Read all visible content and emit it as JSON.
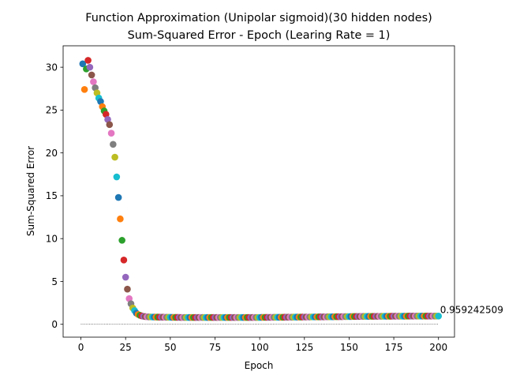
{
  "chart_data": {
    "type": "scatter",
    "title_line1": "Function Approximation (Unipolar sigmoid)(30 hidden nodes)",
    "title_line2": "Sum-Squared Error - Epoch (Learing Rate = 1)",
    "xlabel": "Epoch",
    "ylabel": "Sum-Squared Error",
    "xlim": [
      -9.95,
      208.95
    ],
    "ylim": [
      -1.5,
      32.5
    ],
    "xticks": [
      0,
      25,
      50,
      75,
      100,
      125,
      150,
      175,
      200
    ],
    "yticks": [
      0,
      5,
      10,
      15,
      20,
      25,
      30
    ],
    "grid": false,
    "legend": "none",
    "reference_line": {
      "y": 0,
      "x_start": 0,
      "x_end": 200,
      "style": "dotted"
    },
    "annotation": {
      "text": "0.959242509",
      "x": 200,
      "y": 0.959242509
    },
    "color_cycle": [
      "#1f77b4",
      "#ff7f0e",
      "#2ca02c",
      "#d62728",
      "#9467bd",
      "#8c564b",
      "#e377c2",
      "#7f7f7f",
      "#bcbd22",
      "#17becf"
    ],
    "x_start": 1,
    "y": [
      30.4,
      27.4,
      29.8,
      30.8,
      30.0,
      29.1,
      28.3,
      27.6,
      27.0,
      26.4,
      26.0,
      25.4,
      24.9,
      24.5,
      23.9,
      23.3,
      22.3,
      21.0,
      19.5,
      17.2,
      14.8,
      12.3,
      9.8,
      7.5,
      5.5,
      4.1,
      3.0,
      2.4,
      1.9,
      1.6,
      1.3,
      1.15,
      1.05,
      0.98,
      0.93,
      0.9,
      0.88,
      0.87,
      0.86,
      0.85,
      0.85,
      0.84,
      0.84,
      0.83,
      0.83,
      0.83,
      0.82,
      0.82,
      0.82,
      0.82,
      0.81,
      0.81,
      0.81,
      0.81,
      0.81,
      0.8,
      0.8,
      0.8,
      0.8,
      0.8,
      0.8,
      0.8,
      0.8,
      0.8,
      0.8,
      0.8,
      0.8,
      0.8,
      0.8,
      0.8,
      0.8,
      0.8,
      0.8,
      0.8,
      0.8,
      0.8,
      0.8,
      0.8,
      0.8,
      0.8,
      0.8,
      0.8,
      0.8,
      0.8,
      0.8,
      0.8,
      0.8,
      0.8,
      0.8,
      0.8,
      0.8,
      0.8,
      0.8,
      0.8,
      0.8,
      0.8,
      0.8,
      0.8,
      0.8,
      0.8,
      0.81,
      0.81,
      0.81,
      0.81,
      0.81,
      0.81,
      0.81,
      0.82,
      0.82,
      0.82,
      0.82,
      0.82,
      0.82,
      0.83,
      0.83,
      0.83,
      0.83,
      0.83,
      0.84,
      0.84,
      0.84,
      0.84,
      0.84,
      0.85,
      0.85,
      0.85,
      0.85,
      0.85,
      0.86,
      0.86,
      0.86,
      0.86,
      0.87,
      0.87,
      0.87,
      0.87,
      0.87,
      0.88,
      0.88,
      0.88,
      0.88,
      0.89,
      0.89,
      0.89,
      0.89,
      0.89,
      0.9,
      0.9,
      0.9,
      0.9,
      0.9,
      0.91,
      0.91,
      0.91,
      0.91,
      0.91,
      0.92,
      0.92,
      0.92,
      0.92,
      0.92,
      0.93,
      0.93,
      0.93,
      0.93,
      0.93,
      0.93,
      0.94,
      0.94,
      0.94,
      0.94,
      0.94,
      0.94,
      0.95,
      0.95,
      0.95,
      0.95,
      0.95,
      0.95,
      0.95,
      0.95,
      0.95,
      0.96,
      0.96,
      0.96,
      0.96,
      0.96,
      0.96,
      0.96,
      0.96,
      0.96,
      0.96,
      0.96,
      0.96,
      0.96,
      0.96,
      0.96,
      0.96,
      0.96,
      0.959242509
    ]
  }
}
